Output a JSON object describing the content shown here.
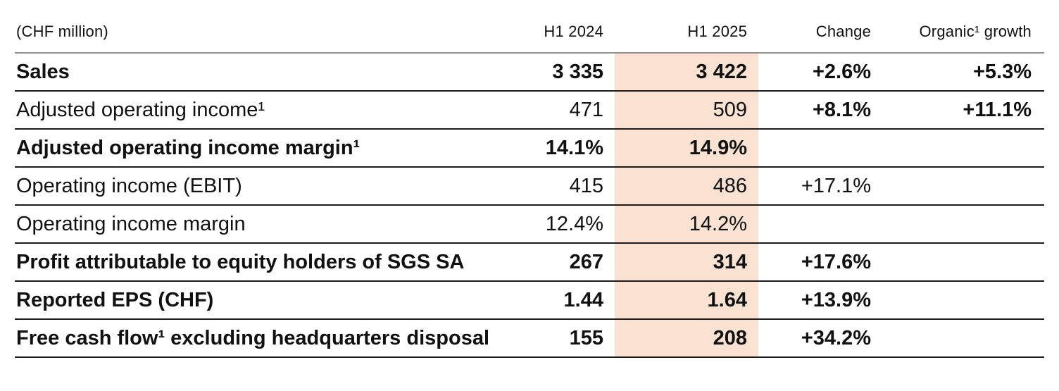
{
  "table": {
    "unit_label": "(CHF million)",
    "columns": [
      "H1 2024",
      "H1 2025",
      "Change",
      "Organic¹ growth"
    ],
    "highlighted_column": "H1 2025",
    "colors": {
      "highlight_band": "#f9e2d1",
      "header_rule": "#8f8f8f",
      "row_rule": "#1c1c1c",
      "text": "#111111",
      "background": "#ffffff"
    },
    "rows": [
      {
        "label": "Sales",
        "h1_2024": "3 335",
        "h1_2025": "3 422",
        "change": "+2.6%",
        "organic_growth": "+5.3%",
        "label_bold": true,
        "values_bold": true,
        "change_bold": true
      },
      {
        "label": "Adjusted operating income¹",
        "h1_2024": "471",
        "h1_2025": "509",
        "change": "+8.1%",
        "organic_growth": "+11.1%",
        "label_bold": false,
        "values_bold": false,
        "change_bold": true
      },
      {
        "label": "Adjusted operating income margin¹",
        "h1_2024": "14.1%",
        "h1_2025": "14.9%",
        "change": "",
        "organic_growth": "",
        "label_bold": true,
        "values_bold": true,
        "change_bold": false
      },
      {
        "label": "Operating income (EBIT)",
        "h1_2024": "415",
        "h1_2025": "486",
        "change": "+17.1%",
        "organic_growth": "",
        "label_bold": false,
        "values_bold": false,
        "change_bold": false
      },
      {
        "label": "Operating income margin",
        "h1_2024": "12.4%",
        "h1_2025": "14.2%",
        "change": "",
        "organic_growth": "",
        "label_bold": false,
        "values_bold": false,
        "change_bold": false
      },
      {
        "label": "Profit attributable to equity holders of SGS SA",
        "h1_2024": "267",
        "h1_2025": "314",
        "change": "+17.6%",
        "organic_growth": "",
        "label_bold": true,
        "values_bold": true,
        "change_bold": true
      },
      {
        "label": "Reported EPS (CHF)",
        "h1_2024": "1.44",
        "h1_2025": "1.64",
        "change": "+13.9%",
        "organic_growth": "",
        "label_bold": true,
        "values_bold": true,
        "change_bold": true
      },
      {
        "label": "Free cash flow¹ excluding headquarters disposal",
        "h1_2024": "155",
        "h1_2025": "208",
        "change": "+34.2%",
        "organic_growth": "",
        "label_bold": true,
        "values_bold": true,
        "change_bold": true
      }
    ]
  }
}
